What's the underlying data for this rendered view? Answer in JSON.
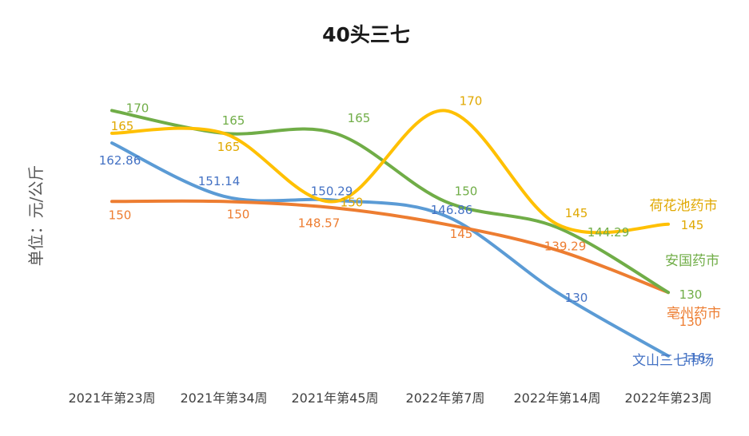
{
  "chart_data": {
    "type": "line",
    "title": "40头三七",
    "ylabel": "单位：元/公斤",
    "xlabel": "",
    "categories": [
      "2021年第23周",
      "2021年第34周",
      "2021年第45周",
      "2022年第7周",
      "2022年第14周",
      "2022年第23周"
    ],
    "ylim": [
      110,
      175
    ],
    "grid": false,
    "legend": "none (series names labelled at line ends)",
    "series": [
      {
        "name": "文山三七市场",
        "color": "#5b9bd5",
        "label_color": "#4472c4",
        "values": [
          162.86,
          151.14,
          150.29,
          146.86,
          130,
          116
        ],
        "labels": [
          "162.86",
          "151.14",
          "150.29",
          "146.86",
          "130",
          "116"
        ]
      },
      {
        "name": "亳州药市",
        "color": "#ed7d31",
        "label_color": "#ed7d31",
        "values": [
          150,
          150,
          148.57,
          145,
          139.29,
          130
        ],
        "labels": [
          "150",
          "150",
          "148.57",
          "145",
          "139.29",
          "130"
        ]
      },
      {
        "name": "安国药市",
        "color": "#70ad47",
        "label_color": "#70ad47",
        "values": [
          170,
          165,
          165,
          150,
          144.29,
          130
        ],
        "labels": [
          "170",
          "165",
          "165",
          "150",
          "144.29",
          "130"
        ]
      },
      {
        "name": "荷花池药市",
        "color": "#ffc000",
        "label_color": "#e0a800",
        "values": [
          165,
          165,
          150,
          170,
          145,
          145
        ],
        "labels": [
          "165",
          "165",
          "150",
          "170",
          "145",
          "145"
        ]
      }
    ]
  }
}
